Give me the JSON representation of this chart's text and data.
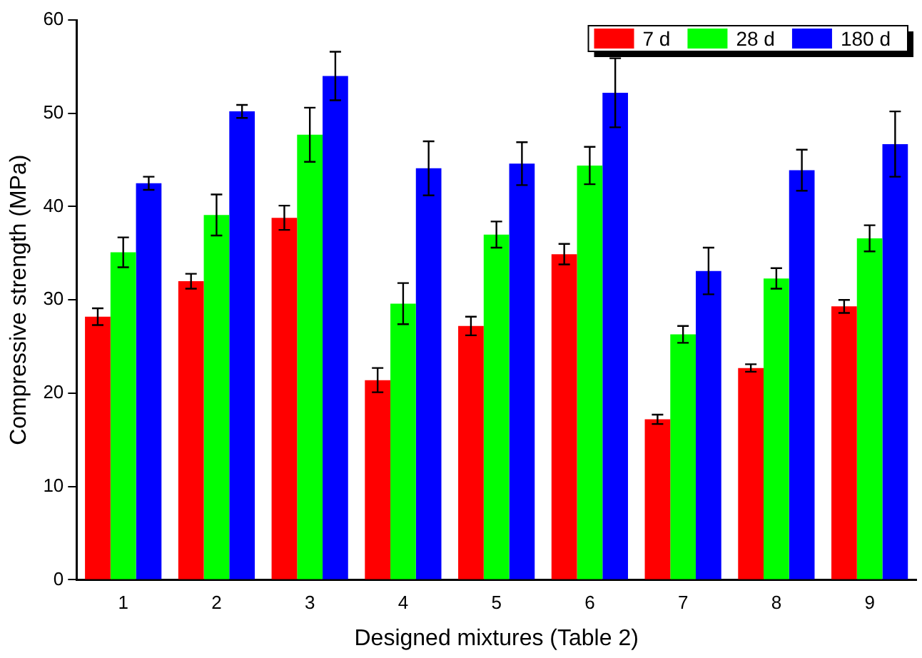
{
  "chart_data": {
    "type": "bar",
    "xlabel": "Designed mixtures (Table 2)",
    "ylabel": "Compressive strength (MPa)",
    "categories": [
      "1",
      "2",
      "3",
      "4",
      "5",
      "6",
      "7",
      "8",
      "9"
    ],
    "series": [
      {
        "name": "7 d",
        "color": "#ff0000",
        "values": [
          28.2,
          32.0,
          38.8,
          21.4,
          27.2,
          34.9,
          17.2,
          22.7,
          29.3
        ],
        "errors": [
          0.9,
          0.8,
          1.3,
          1.3,
          1.0,
          1.1,
          0.5,
          0.4,
          0.7
        ]
      },
      {
        "name": "28 d",
        "color": "#00ff00",
        "values": [
          35.1,
          39.1,
          47.7,
          29.6,
          37.0,
          44.4,
          26.3,
          32.3,
          36.6
        ],
        "errors": [
          1.6,
          2.2,
          2.9,
          2.2,
          1.4,
          2.0,
          0.9,
          1.1,
          1.4
        ]
      },
      {
        "name": "180 d",
        "color": "#0000ff",
        "values": [
          42.5,
          50.2,
          54.0,
          44.1,
          44.6,
          52.2,
          33.1,
          43.9,
          46.7
        ],
        "errors": [
          0.7,
          0.7,
          2.6,
          2.9,
          2.3,
          3.7,
          2.5,
          2.2,
          3.5
        ]
      }
    ],
    "ylim": [
      0,
      60
    ],
    "yticks": [
      0,
      10,
      20,
      30,
      40,
      50,
      60
    ],
    "grid": false,
    "legend": "top right"
  }
}
